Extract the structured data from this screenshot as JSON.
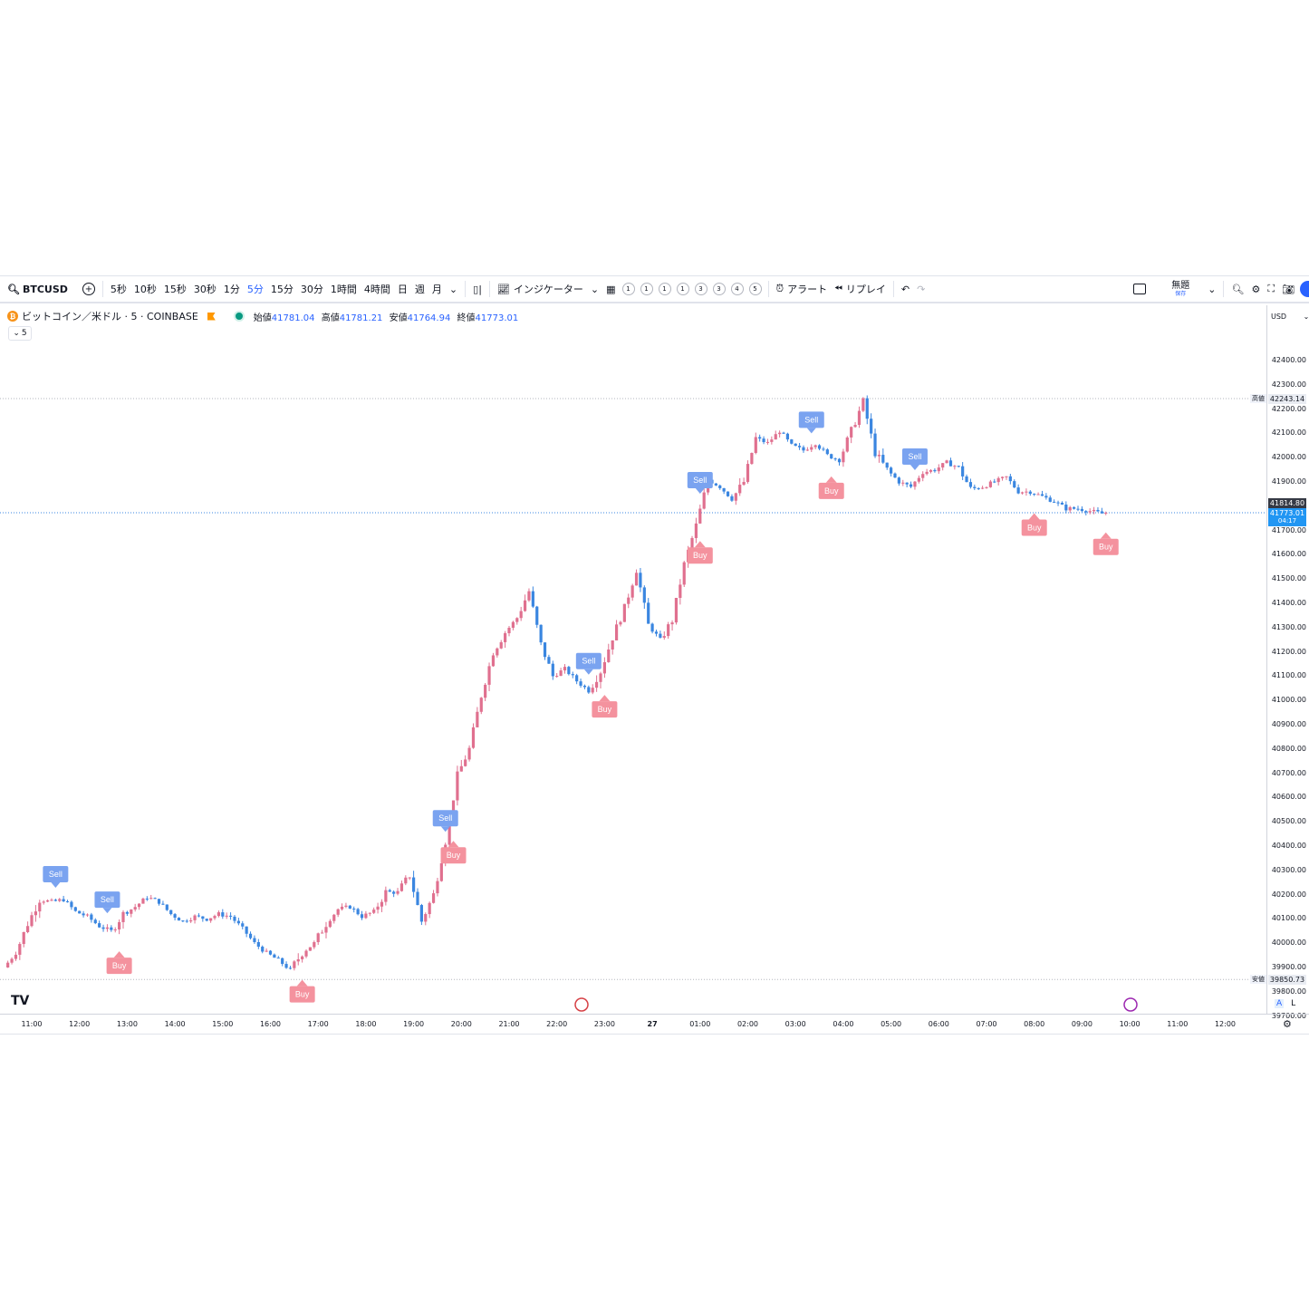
{
  "toolbar": {
    "symbol": "BTCUSD",
    "intervals": [
      "5秒",
      "10秒",
      "15秒",
      "30秒",
      "1分",
      "5分",
      "15分",
      "30分",
      "1時間",
      "4時間",
      "日",
      "週",
      "月"
    ],
    "active_interval": "5分",
    "indicators_label": "インジケーター",
    "template_numbers": [
      "1",
      "1",
      "1",
      "1",
      "3",
      "3",
      "4",
      "5"
    ],
    "alert_label": "アラート",
    "replay_label": "リプレイ",
    "layout_name": "無題",
    "layout_sub": "保存"
  },
  "legend": {
    "title": "ビットコイン／米ドル · 5 · COINBASE",
    "open_label": "始値",
    "open": "41781.04",
    "high_label": "高値",
    "high": "41781.21",
    "low_label": "安値",
    "low": "41764.94",
    "close_label": "終値",
    "close": "41773.01",
    "collapse_value": "5"
  },
  "price_axis": {
    "currency": "USD",
    "ticks": [
      "42400.00",
      "42300.00",
      "42200.00",
      "42100.00",
      "42000.00",
      "41900.00",
      "41800.00",
      "41700.00",
      "41600.00",
      "41500.00",
      "41400.00",
      "41300.00",
      "41200.00",
      "41100.00",
      "41000.00",
      "40900.00",
      "40800.00",
      "40700.00",
      "40600.00",
      "40500.00",
      "40400.00",
      "40300.00",
      "40200.00",
      "40100.00",
      "40000.00",
      "39900.00",
      "39800.00",
      "39700.00"
    ],
    "high_tag_label": "高値",
    "high_tag": "42243.14",
    "low_tag_label": "安値",
    "low_tag": "39850.73",
    "prev_tag": "41814.80",
    "last_tag": "41773.01",
    "countdown": "04:17",
    "mode_a": "A",
    "mode_l": "L"
  },
  "time_axis": {
    "ticks": [
      "11:00",
      "12:00",
      "13:00",
      "14:00",
      "15:00",
      "16:00",
      "17:00",
      "18:00",
      "19:00",
      "20:00",
      "21:00",
      "22:00",
      "23:00",
      "27",
      "01:00",
      "02:00",
      "03:00",
      "04:00",
      "05:00",
      "06:00",
      "07:00",
      "08:00",
      "09:00",
      "10:00",
      "11:00",
      "12:00"
    ]
  },
  "signals": {
    "sell_label": "Sell",
    "buy_label": "Buy"
  },
  "colors": {
    "up": "#e0708f",
    "down": "#3a86e0",
    "sell_bg": "#7aa3f0",
    "buy_bg": "#f4929e",
    "accent": "#2962ff"
  },
  "chart_data": {
    "type": "candlestick",
    "interval": "5",
    "ylim": [
      39700,
      42450
    ],
    "anchors": [
      [
        "10:30",
        39900
      ],
      [
        "10:45",
        39960
      ],
      [
        "11:00",
        40080
      ],
      [
        "11:15",
        40180
      ],
      [
        "11:30",
        40170
      ],
      [
        "11:45",
        40180
      ],
      [
        "12:00",
        40130
      ],
      [
        "12:15",
        40110
      ],
      [
        "12:30",
        40070
      ],
      [
        "12:45",
        40050
      ],
      [
        "13:00",
        40120
      ],
      [
        "13:15",
        40150
      ],
      [
        "13:30",
        40190
      ],
      [
        "13:45",
        40170
      ],
      [
        "14:00",
        40120
      ],
      [
        "14:15",
        40090
      ],
      [
        "14:30",
        40110
      ],
      [
        "14:45",
        40100
      ],
      [
        "15:00",
        40120
      ],
      [
        "15:15",
        40110
      ],
      [
        "15:30",
        40060
      ],
      [
        "15:45",
        40000
      ],
      [
        "16:00",
        39960
      ],
      [
        "16:15",
        39930
      ],
      [
        "16:30",
        39890
      ],
      [
        "16:45",
        39960
      ],
      [
        "17:00",
        40000
      ],
      [
        "17:15",
        40080
      ],
      [
        "17:30",
        40140
      ],
      [
        "17:45",
        40150
      ],
      [
        "18:00",
        40110
      ],
      [
        "18:15",
        40130
      ],
      [
        "18:30",
        40210
      ],
      [
        "18:45",
        40210
      ],
      [
        "19:00",
        40280
      ],
      [
        "19:15",
        40090
      ],
      [
        "19:30",
        40200
      ],
      [
        "19:45",
        40420
      ],
      [
        "20:00",
        40690
      ],
      [
        "20:15",
        40800
      ],
      [
        "20:30",
        41020
      ],
      [
        "20:45",
        41200
      ],
      [
        "21:00",
        41280
      ],
      [
        "21:15",
        41340
      ],
      [
        "21:30",
        41450
      ],
      [
        "21:45",
        41230
      ],
      [
        "22:00",
        41100
      ],
      [
        "22:15",
        41130
      ],
      [
        "22:30",
        41080
      ],
      [
        "22:45",
        41040
      ],
      [
        "23:00",
        41120
      ],
      [
        "23:15",
        41260
      ],
      [
        "23:30",
        41380
      ],
      [
        "23:45",
        41540
      ],
      [
        "00:00",
        41310
      ],
      [
        "00:15",
        41250
      ],
      [
        "00:30",
        41330
      ],
      [
        "00:45",
        41560
      ],
      [
        "01:00",
        41720
      ],
      [
        "01:15",
        41910
      ],
      [
        "01:30",
        41880
      ],
      [
        "01:45",
        41830
      ],
      [
        "02:00",
        41900
      ],
      [
        "02:15",
        42080
      ],
      [
        "02:30",
        42060
      ],
      [
        "02:45",
        42110
      ],
      [
        "03:00",
        42050
      ],
      [
        "03:15",
        42030
      ],
      [
        "03:30",
        42060
      ],
      [
        "03:45",
        42010
      ],
      [
        "04:00",
        41990
      ],
      [
        "04:15",
        42110
      ],
      [
        "04:30",
        42230
      ],
      [
        "04:45",
        42020
      ],
      [
        "05:00",
        41950
      ],
      [
        "05:15",
        41900
      ],
      [
        "05:30",
        41880
      ],
      [
        "05:45",
        41940
      ],
      [
        "06:00",
        41950
      ],
      [
        "06:15",
        41980
      ],
      [
        "06:30",
        41960
      ],
      [
        "06:45",
        41870
      ],
      [
        "07:00",
        41880
      ],
      [
        "07:15",
        41900
      ],
      [
        "07:30",
        41920
      ],
      [
        "07:45",
        41860
      ],
      [
        "08:00",
        41860
      ],
      [
        "08:15",
        41840
      ],
      [
        "08:30",
        41820
      ],
      [
        "08:45",
        41790
      ],
      [
        "09:00",
        41790
      ],
      [
        "09:15",
        41780
      ],
      [
        "09:30",
        41770
      ]
    ],
    "last_close": 41773.01,
    "high": 42243.14,
    "low": 39850.73,
    "sell_signals": [
      "11:30",
      "12:35",
      "19:40",
      "22:40",
      "01:00",
      "03:20",
      "05:30"
    ],
    "buy_signals": [
      "10:25",
      "12:50",
      "16:40",
      "19:50",
      "23:00",
      "01:00",
      "03:45",
      "08:00"
    ]
  }
}
